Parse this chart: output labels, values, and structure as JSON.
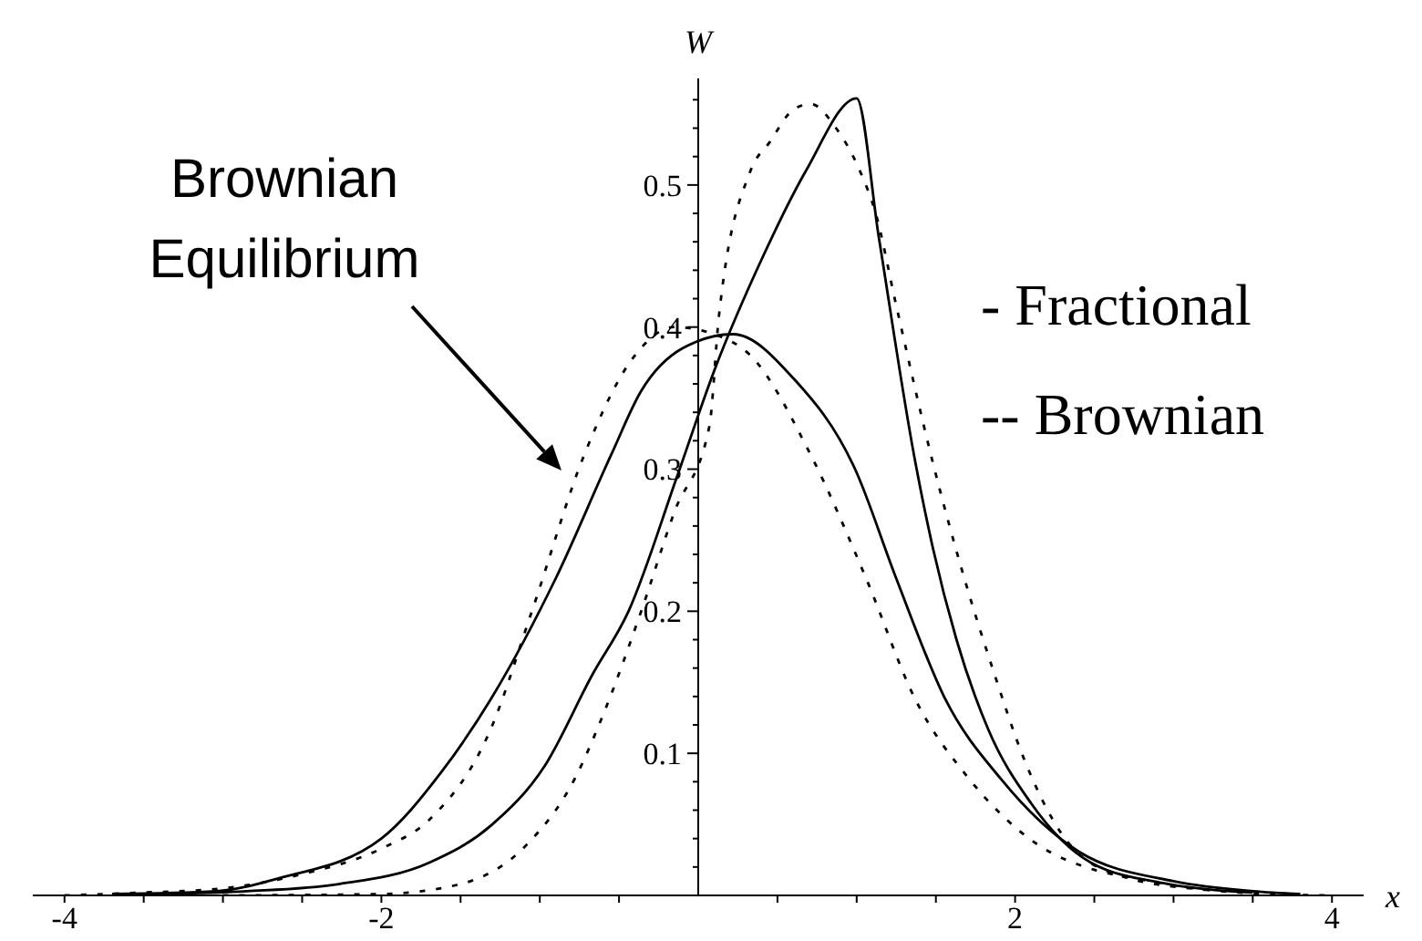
{
  "chart_data": {
    "type": "line",
    "xlabel": "x",
    "ylabel": "W",
    "xlim": [
      -4.2,
      4.2
    ],
    "ylim": [
      0,
      0.575
    ],
    "xticks": [
      -4,
      {
        "value": -3.5,
        "label": null
      },
      {
        "value": -3,
        "label": null
      },
      {
        "value": -2.5,
        "label": null
      },
      -2,
      {
        "value": -1.5,
        "label": null
      },
      {
        "value": -1,
        "label": null
      },
      {
        "value": -0.5,
        "label": null
      },
      {
        "value": 0.5,
        "label": null
      },
      {
        "value": 1,
        "label": null
      },
      {
        "value": 1.5,
        "label": null
      },
      2,
      {
        "value": 2.5,
        "label": null
      },
      {
        "value": 3,
        "label": null
      },
      {
        "value": 3.5,
        "label": null
      },
      4
    ],
    "yticks": [
      {
        "value": 0.02,
        "label": null
      },
      {
        "value": 0.04,
        "label": null
      },
      {
        "value": 0.06,
        "label": null
      },
      {
        "value": 0.08,
        "label": null
      },
      0.1,
      {
        "value": 0.12,
        "label": null
      },
      {
        "value": 0.14,
        "label": null
      },
      {
        "value": 0.16,
        "label": null
      },
      {
        "value": 0.18,
        "label": null
      },
      0.2,
      {
        "value": 0.22,
        "label": null
      },
      {
        "value": 0.24,
        "label": null
      },
      {
        "value": 0.26,
        "label": null
      },
      {
        "value": 0.28,
        "label": null
      },
      0.3,
      {
        "value": 0.32,
        "label": null
      },
      {
        "value": 0.34,
        "label": null
      },
      {
        "value": 0.36,
        "label": null
      },
      {
        "value": 0.38,
        "label": null
      },
      0.4,
      {
        "value": 0.42,
        "label": null
      },
      {
        "value": 0.44,
        "label": null
      },
      {
        "value": 0.46,
        "label": null
      },
      {
        "value": 0.48,
        "label": null
      },
      0.5,
      {
        "value": 0.52,
        "label": null
      },
      {
        "value": 0.54,
        "label": null
      },
      {
        "value": 0.56,
        "label": null
      }
    ],
    "marker": "none",
    "series": [
      {
        "color": "#000000",
        "line_style": "dotted",
        "x": [
          -4,
          -3.5,
          -3,
          -2.5,
          -2,
          -1.7,
          -1.31,
          -1.05,
          -0.72,
          -0.4,
          -0.15,
          0.1,
          0.33,
          0.71,
          1.06,
          1.37,
          1.71,
          2.14,
          2.5,
          2.76,
          3.2,
          3.6,
          4
        ],
        "values": [
          0,
          0.002,
          0.005,
          0.015,
          0.033,
          0.053,
          0.117,
          0.2,
          0.31,
          0.38,
          0.4,
          0.395,
          0.38,
          0.31,
          0.223,
          0.138,
          0.082,
          0.036,
          0.018,
          0.012,
          0.004,
          0.001,
          0
        ]
      },
      {
        "color": "#000000",
        "line_style": "solid",
        "x": [
          -3.7,
          -3.04,
          -2.65,
          -2,
          -1.62,
          -1.31,
          -0.9,
          -0.55,
          -0.36,
          -0.1,
          0.22,
          0.6,
          0.99,
          1.25,
          1.56,
          1.91,
          2.4,
          3,
          3.5,
          3.8
        ],
        "values": [
          0.001,
          0.003,
          0.012,
          0.04,
          0.087,
          0.138,
          0.223,
          0.31,
          0.355,
          0.385,
          0.395,
          0.364,
          0.3,
          0.223,
          0.138,
          0.082,
          0.031,
          0.01,
          0.003,
          0.001
        ]
      },
      {
        "color": "#000000",
        "line_style": "solid",
        "x": [
          -3.4,
          -2.85,
          -2.27,
          -1.7,
          -1.31,
          -0.97,
          -0.67,
          -0.44,
          -0.13,
          0.1,
          0.41,
          0.68,
          1.0,
          1.14,
          1.37,
          1.48,
          1.63,
          1.83,
          2.1,
          2.48,
          2.97,
          3.5
        ],
        "values": [
          0.001,
          0.003,
          0.008,
          0.023,
          0.049,
          0.091,
          0.155,
          0.2,
          0.296,
          0.369,
          0.45,
          0.51,
          0.561,
          0.463,
          0.305,
          0.245,
          0.18,
          0.117,
          0.065,
          0.023,
          0.008,
          0.002
        ]
      },
      {
        "color": "#000000",
        "line_style": "dotted",
        "x": [
          -3,
          -2,
          -1.5,
          -1.08,
          -0.78,
          -0.59,
          -0.36,
          -0.15,
          0.07,
          0.13,
          0.33,
          0.45,
          0.6,
          0.71,
          0.87,
          1.02,
          1.12,
          1.25,
          1.48,
          1.68,
          1.86,
          2.06,
          2.29,
          2.63,
          3.2
        ],
        "values": [
          0,
          0.001,
          0.008,
          0.036,
          0.082,
          0.13,
          0.2,
          0.27,
          0.33,
          0.407,
          0.51,
          0.53,
          0.553,
          0.557,
          0.54,
          0.51,
          0.48,
          0.415,
          0.305,
          0.223,
          0.159,
          0.095,
          0.044,
          0.015,
          0.004
        ]
      }
    ],
    "annotations": [
      "Brownian Equilibrium",
      "- Fractional",
      "-- Brownian"
    ]
  }
}
